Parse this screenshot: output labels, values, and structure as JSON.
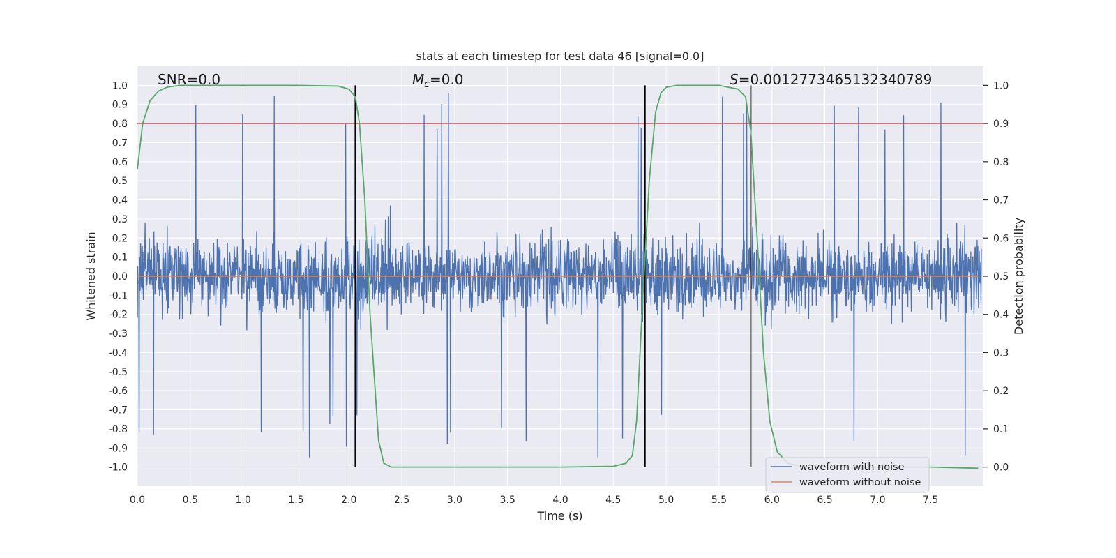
{
  "chart_data": {
    "type": "line",
    "title": "stats at each timestep for test data 46 [signal=0.0]",
    "xlabel": "Time (s)",
    "ylabel": "Whitened strain",
    "ylabel_right": "Detection probability",
    "xlim": [
      0.0,
      8.0
    ],
    "ylim": [
      -1.1,
      1.1
    ],
    "ylim_right": [
      -0.05,
      1.05
    ],
    "grid": true,
    "x_ticks": [
      "0.0",
      "0.5",
      "1.0",
      "1.5",
      "2.0",
      "2.5",
      "3.0",
      "3.5",
      "4.0",
      "4.5",
      "5.0",
      "5.5",
      "6.0",
      "6.5",
      "7.0",
      "7.5"
    ],
    "y_ticks": [
      "1.0",
      "0.9",
      "0.8",
      "0.7",
      "0.6",
      "0.5",
      "0.4",
      "0.3",
      "0.2",
      "0.1",
      "0.0",
      "-0.1",
      "-0.2",
      "-0.3",
      "-0.4",
      "-0.5",
      "-0.6",
      "-0.7",
      "-0.8",
      "-0.9",
      "-1.0"
    ],
    "y_ticks_right": [
      "1.0",
      "0.9",
      "0.8",
      "0.7",
      "0.6",
      "0.5",
      "0.4",
      "0.3",
      "0.2",
      "0.1",
      "0.0"
    ],
    "annotations": {
      "snr": "SNR=0.0",
      "mc_symbol": "M",
      "mc_sub": "c",
      "mc_value": "=0.0",
      "s_symbol": "S",
      "s_value": "=0.0012773465132340789"
    },
    "threshold_right": 0.9,
    "threshold_color": "#c44e52",
    "vertical_lines_x": [
      2.06,
      4.8,
      5.8
    ],
    "vertical_lines_color": "#000000",
    "series": [
      {
        "name": "waveform with noise",
        "color": "#4c72b0",
        "description_stats": {
          "typical_range": [
            -0.6,
            0.6
          ],
          "peak_max": 1.0,
          "peak_min": -0.95
        }
      },
      {
        "name": "waveform without noise",
        "color": "#dd8452",
        "constant_value": 0.0
      },
      {
        "color": "#55a868",
        "axis": "right",
        "x": [
          0.0,
          0.05,
          0.12,
          0.2,
          0.28,
          0.4,
          0.6,
          1.0,
          1.5,
          1.9,
          2.0,
          2.06,
          2.1,
          2.15,
          2.2,
          2.28,
          2.33,
          2.4,
          3.0,
          4.0,
          4.5,
          4.62,
          4.68,
          4.72,
          4.78,
          4.84,
          4.9,
          4.95,
          5.0,
          5.1,
          5.5,
          5.68,
          5.75,
          5.8,
          5.86,
          5.92,
          5.98,
          6.05,
          6.15,
          6.3,
          7.0,
          7.5,
          7.95
        ],
        "y": [
          0.78,
          0.9,
          0.96,
          0.985,
          0.995,
          1.0,
          1.0,
          1.0,
          1.0,
          0.998,
          0.99,
          0.97,
          0.9,
          0.7,
          0.4,
          0.07,
          0.01,
          0.0,
          0.0,
          0.0,
          0.002,
          0.01,
          0.03,
          0.12,
          0.45,
          0.75,
          0.93,
          0.98,
          0.995,
          1.0,
          1.0,
          0.99,
          0.97,
          0.88,
          0.6,
          0.3,
          0.12,
          0.04,
          0.01,
          0.0,
          0.0,
          0.0,
          -0.003
        ]
      }
    ],
    "legend": {
      "position": "lower right",
      "entries": [
        {
          "label": "waveform with noise",
          "color": "#4c72b0"
        },
        {
          "label": "waveform without noise",
          "color": "#dd8452"
        }
      ]
    },
    "colors": {
      "background": "#eaeaf2",
      "grid": "#ffffff"
    }
  }
}
